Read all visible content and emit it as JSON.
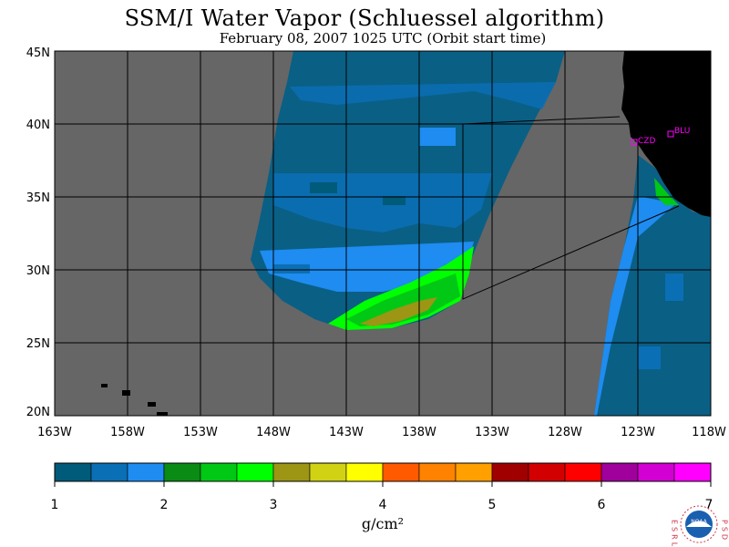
{
  "title": "SSM/I Water Vapor (Schluessel algorithm)",
  "subtitle": "February 08, 2007  1025 UTC  (Orbit start time)",
  "lat_labels": [
    "45N",
    "40N",
    "35N",
    "30N",
    "25N",
    "20N"
  ],
  "lon_labels": [
    "163W",
    "158W",
    "153W",
    "148W",
    "143W",
    "138W",
    "133W",
    "128W",
    "123W",
    "118W"
  ],
  "stations": [
    {
      "name": "CZD",
      "lat": 38.6,
      "lon": -123.2
    },
    {
      "name": "BLU",
      "lat": 39.2,
      "lon": -121.0
    }
  ],
  "colorbar": {
    "colors": [
      "#005a7a",
      "#0a6fb4",
      "#1e8cf0",
      "#0a8c14",
      "#00c814",
      "#00ff00",
      "#9c9614",
      "#d2d214",
      "#ffff00",
      "#ff5a00",
      "#ff8200",
      "#ffa000",
      "#a00000",
      "#d20000",
      "#ff0000",
      "#a0009c",
      "#d200d2",
      "#ff00ff"
    ],
    "tick_labels": [
      "1",
      "2",
      "3",
      "4",
      "5",
      "6",
      "7"
    ],
    "unit": "g/cm²"
  },
  "colors": {
    "land": "#000000",
    "no_data": "#666666",
    "station": "#ff00ff"
  },
  "logo": {
    "left_text": "ESRL",
    "right_text": "PSD",
    "badge": "NOAA"
  }
}
